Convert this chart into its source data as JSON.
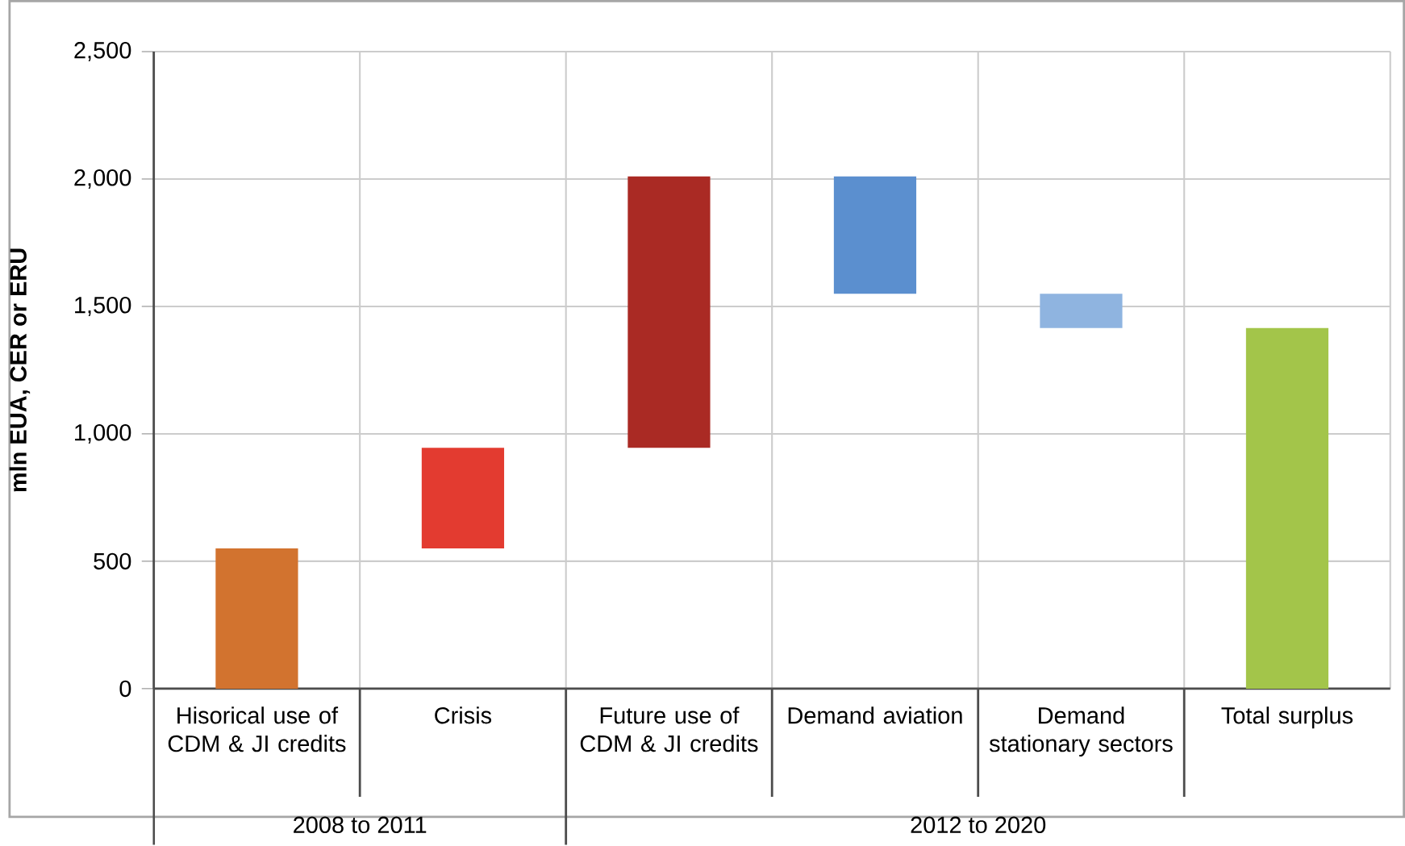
{
  "chart_data": {
    "type": "bar",
    "ylabel": "mln EUA, CER or ERU",
    "categories": [
      "Hisorical use of CDM & JI credits",
      "Crisis",
      "Future use of CDM & JI credits",
      "Demand aviation",
      "Demand stationary sectors",
      "Total surplus"
    ],
    "base": [
      0,
      550,
      945,
      1550,
      1415,
      0
    ],
    "values": [
      550,
      395,
      1065,
      460,
      135,
      1415
    ],
    "colors": [
      "#d2732f",
      "#e33b30",
      "#aa2a24",
      "#5b8fcf",
      "#8fb4e0",
      "#a3c54a"
    ],
    "ylim": [
      0,
      2500
    ],
    "yticks": [
      0,
      500,
      {
        "value": 1000,
        "label": "1,000"
      },
      {
        "value": 1500,
        "label": "1,500"
      },
      {
        "value": 2000,
        "label": "2,000"
      },
      {
        "value": 2500,
        "label": "2,500"
      }
    ],
    "grid": true,
    "annotations": [
      "2008 to 2011",
      "2012 to 2020"
    ]
  }
}
